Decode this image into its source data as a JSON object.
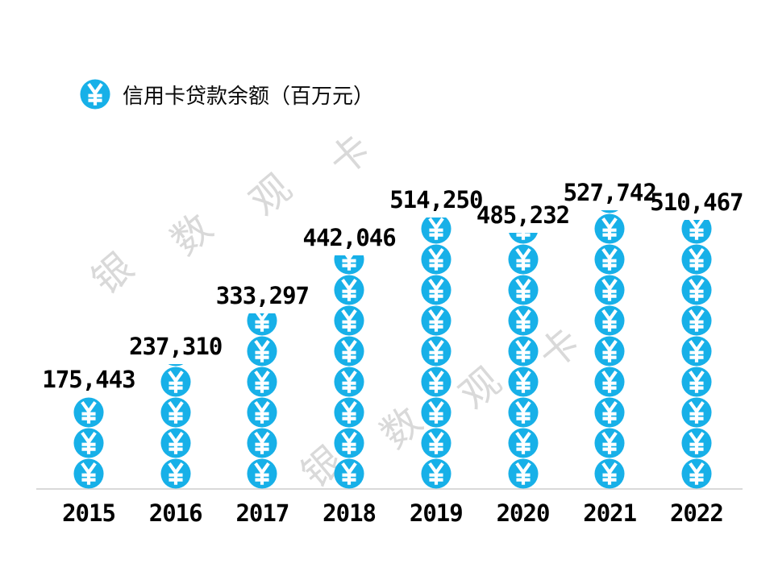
{
  "legend": {
    "icon": "yuan-coin-icon",
    "label": "信用卡贷款余额（百万元）"
  },
  "watermark": {
    "text": "银数观卡"
  },
  "colors": {
    "coin": "#17b0e8",
    "coin_glyph": "#ffffff",
    "axis": "#d9d9d9",
    "watermark": "#d9d9d9",
    "label": "#000000"
  },
  "chart_data": {
    "type": "bar",
    "subtype": "pictogram-stacked-coins",
    "title": "信用卡贷款余额（百万元）",
    "xlabel": "",
    "ylabel": "",
    "categories": [
      "2015",
      "2016",
      "2017",
      "2018",
      "2019",
      "2020",
      "2021",
      "2022"
    ],
    "values": [
      175443,
      237310,
      333297,
      442046,
      514250,
      485232,
      527742,
      510467
    ],
    "labels": [
      "175,443",
      "237,310",
      "333,297",
      "442,046",
      "514,250",
      "485,232",
      "527,742",
      "510,467"
    ],
    "icon_unit": 58000,
    "legend_position": "top-left",
    "grid": false,
    "ylim": [
      0,
      560000
    ]
  }
}
